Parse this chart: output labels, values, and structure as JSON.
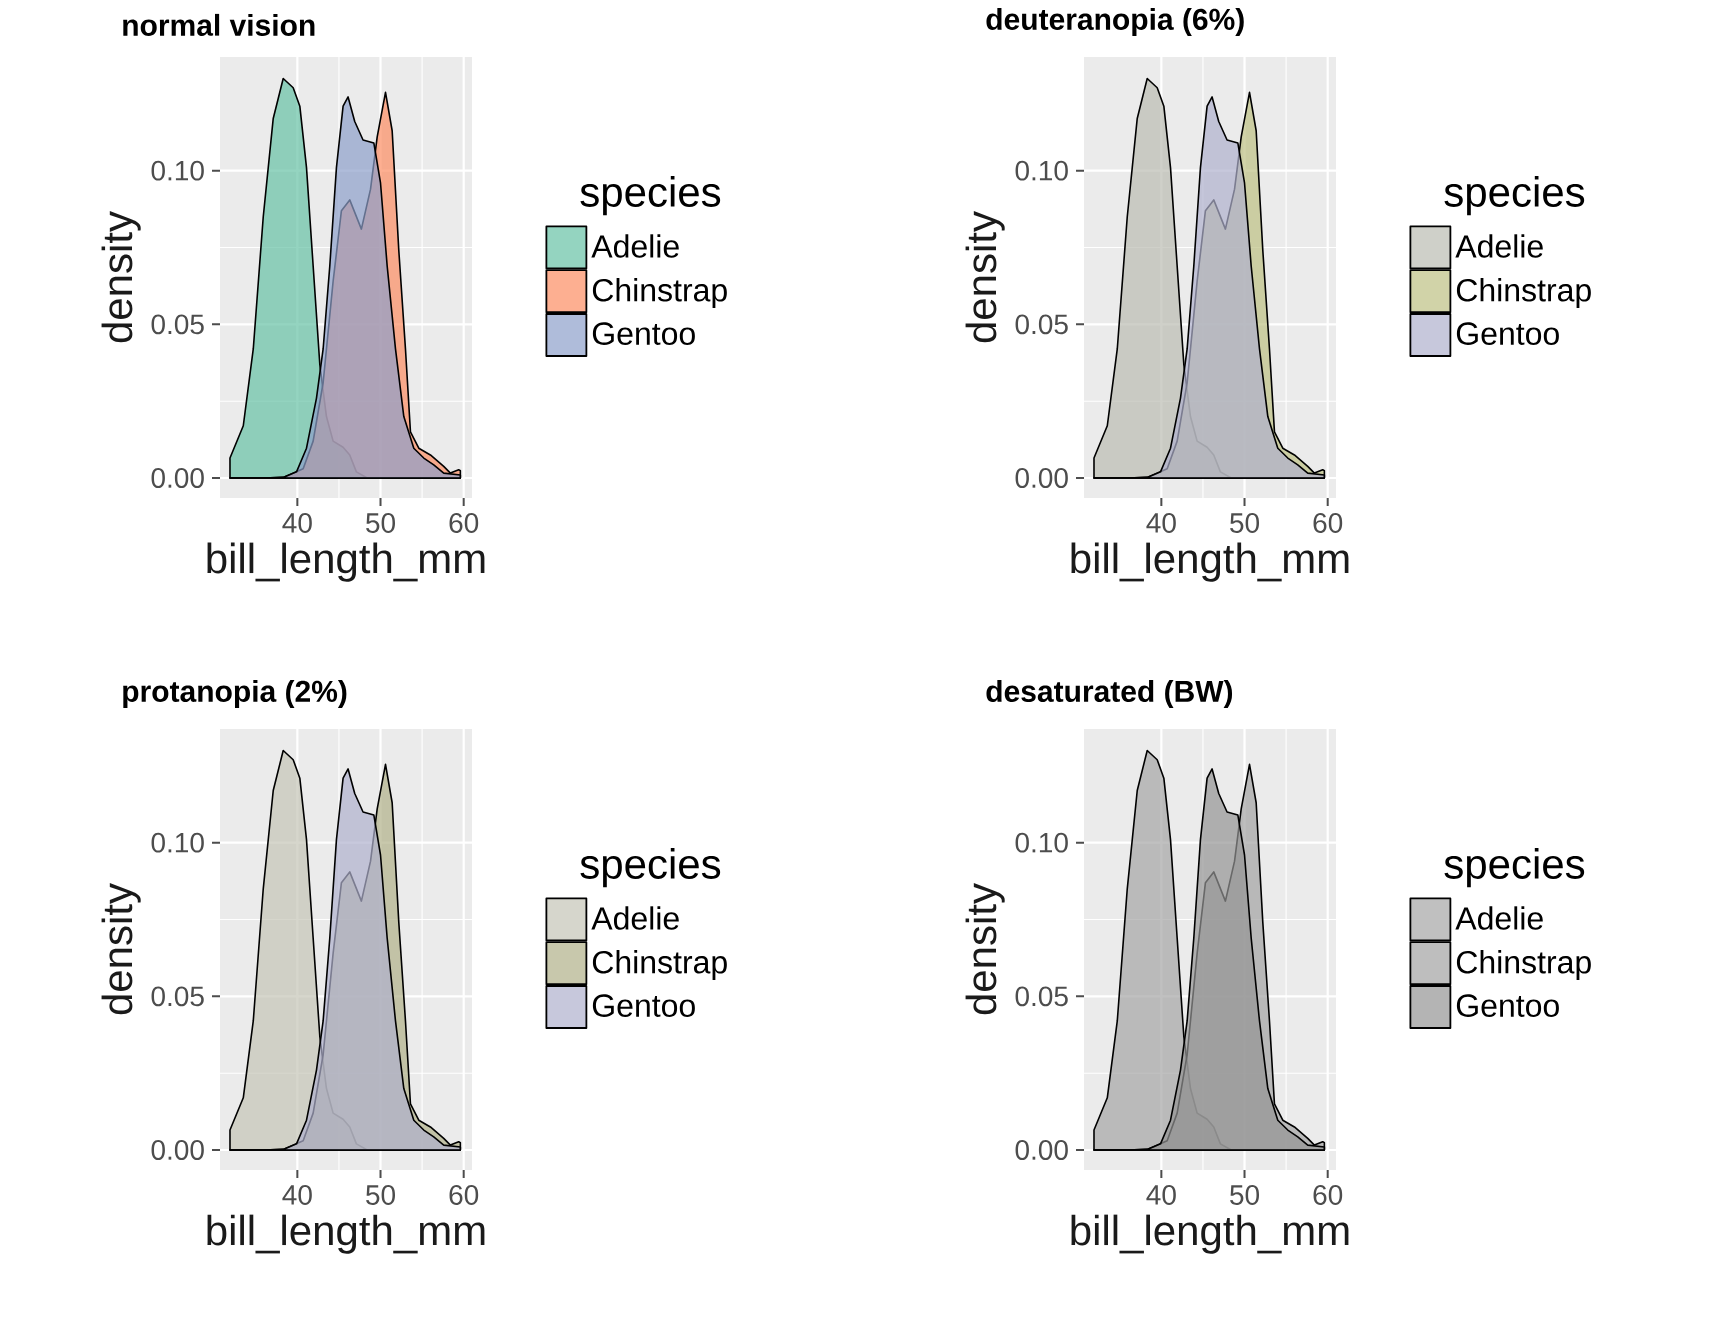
{
  "chart_data": [
    {
      "type": "area",
      "title": "normal vision",
      "xlabel": "bill_length_mm",
      "ylabel": "density",
      "legend_title": "species",
      "legend": "right",
      "grid": true,
      "xlim": [
        30.7,
        61.0
      ],
      "ylim": [
        -0.0065,
        0.137
      ],
      "xticks": [
        40,
        50,
        60
      ],
      "yticks": [
        {
          "value": 0,
          "label": "0.00"
        },
        {
          "value": 0.05,
          "label": "0.05"
        },
        {
          "value": 0.1,
          "label": "0.10"
        }
      ],
      "series": [
        {
          "name": "Adelie",
          "color": "#66c2a5",
          "x": [
            31.9,
            33.5,
            34.7,
            35.9,
            37.1,
            38.3,
            39.5,
            40.3,
            41.1,
            41.9,
            42.7,
            43.5,
            44.3,
            45.5,
            46.3,
            47.1,
            48.4,
            52,
            56,
            59.6
          ],
          "values": [
            0.0065,
            0.017,
            0.042,
            0.085,
            0.117,
            0.13,
            0.127,
            0.121,
            0.101,
            0.069,
            0.037,
            0.02,
            0.012,
            0.01,
            0.0075,
            0.002,
            0,
            0,
            0,
            0
          ]
        },
        {
          "name": "Chinstrap",
          "color": "#fc8d62",
          "x": [
            31.9,
            36,
            38.3,
            40.7,
            41.9,
            43.1,
            44.3,
            45.3,
            46.3,
            47.7,
            48.8,
            49.6,
            50.6,
            51.4,
            52.2,
            53.0,
            53.6,
            54.6,
            56.0,
            57.6,
            58.4,
            59.4,
            59.6
          ],
          "values": [
            0,
            0,
            0.0002,
            0.003,
            0.012,
            0.031,
            0.064,
            0.087,
            0.0905,
            0.081,
            0.094,
            0.111,
            0.1255,
            0.113,
            0.074,
            0.042,
            0.015,
            0.0097,
            0.0075,
            0.0038,
            0.0016,
            0.0027,
            0.0024
          ]
        },
        {
          "name": "Gentoo",
          "color": "#8da0cb",
          "x": [
            31.9,
            36,
            38.3,
            39.9,
            41.1,
            42.3,
            43.1,
            43.9,
            44.7,
            45.5,
            46.1,
            46.9,
            47.9,
            49.2,
            50.0,
            50.8,
            51.8,
            52.8,
            54.0,
            55.2,
            56.4,
            57.6,
            59.6
          ],
          "values": [
            0,
            0,
            0.0002,
            0.002,
            0.0097,
            0.026,
            0.042,
            0.069,
            0.101,
            0.121,
            0.124,
            0.116,
            0.11,
            0.109,
            0.096,
            0.069,
            0.042,
            0.02,
            0.0097,
            0.0065,
            0.0043,
            0.0016,
            0.001
          ]
        }
      ]
    },
    {
      "type": "area",
      "title": "deuteranopia (6%)",
      "xlabel": "bill_length_mm",
      "ylabel": "density",
      "legend_title": "species",
      "legend": "right",
      "grid": true,
      "xlim": [
        30.7,
        61.0
      ],
      "ylim": [
        -0.0065,
        0.137
      ],
      "xticks": [
        40,
        50,
        60
      ],
      "yticks": [
        {
          "value": 0,
          "label": "0.00"
        },
        {
          "value": 0.05,
          "label": "0.05"
        },
        {
          "value": 0.1,
          "label": "0.10"
        }
      ],
      "series": [
        {
          "name": "Adelie",
          "color": "#babcb2",
          "x": [
            31.9,
            33.5,
            34.7,
            35.9,
            37.1,
            38.3,
            39.5,
            40.3,
            41.1,
            41.9,
            42.7,
            43.5,
            44.3,
            45.5,
            46.3,
            47.1,
            48.4,
            52,
            56,
            59.6
          ],
          "values": [
            0.0065,
            0.017,
            0.042,
            0.085,
            0.117,
            0.13,
            0.127,
            0.121,
            0.101,
            0.069,
            0.037,
            0.02,
            0.012,
            0.01,
            0.0075,
            0.002,
            0,
            0,
            0,
            0
          ]
        },
        {
          "name": "Chinstrap",
          "color": "#bdc083",
          "x": [
            31.9,
            36,
            38.3,
            40.7,
            41.9,
            43.1,
            44.3,
            45.3,
            46.3,
            47.7,
            48.8,
            49.6,
            50.6,
            51.4,
            52.2,
            53.0,
            53.6,
            54.6,
            56.0,
            57.6,
            58.4,
            59.4,
            59.6
          ],
          "values": [
            0,
            0,
            0.0002,
            0.003,
            0.012,
            0.031,
            0.064,
            0.087,
            0.0905,
            0.081,
            0.094,
            0.111,
            0.1255,
            0.113,
            0.074,
            0.042,
            0.015,
            0.0097,
            0.0075,
            0.0038,
            0.0016,
            0.0027,
            0.0024
          ]
        },
        {
          "name": "Gentoo",
          "color": "#afb0cd",
          "x": [
            31.9,
            36,
            38.3,
            39.9,
            41.1,
            42.3,
            43.1,
            43.9,
            44.7,
            45.5,
            46.1,
            46.9,
            47.9,
            49.2,
            50.0,
            50.8,
            51.8,
            52.8,
            54.0,
            55.2,
            56.4,
            57.6,
            59.6
          ],
          "values": [
            0,
            0,
            0.0002,
            0.002,
            0.0097,
            0.026,
            0.042,
            0.069,
            0.101,
            0.121,
            0.124,
            0.116,
            0.11,
            0.109,
            0.096,
            0.069,
            0.042,
            0.02,
            0.0097,
            0.0065,
            0.0043,
            0.0016,
            0.001
          ]
        }
      ]
    },
    {
      "type": "area",
      "title": "protanopia (2%)",
      "xlabel": "bill_length_mm",
      "ylabel": "density",
      "legend_title": "species",
      "legend": "right",
      "grid": true,
      "xlim": [
        30.7,
        61.0
      ],
      "ylim": [
        -0.0065,
        0.137
      ],
      "xticks": [
        40,
        50,
        60
      ],
      "yticks": [
        {
          "value": 0,
          "label": "0.00"
        },
        {
          "value": 0.05,
          "label": "0.05"
        },
        {
          "value": 0.1,
          "label": "0.10"
        }
      ],
      "series": [
        {
          "name": "Adelie",
          "color": "#c4c4b7",
          "x": [
            31.9,
            33.5,
            34.7,
            35.9,
            37.1,
            38.3,
            39.5,
            40.3,
            41.1,
            41.9,
            42.7,
            43.5,
            44.3,
            45.5,
            46.3,
            47.1,
            48.4,
            52,
            56,
            59.6
          ],
          "values": [
            0.0065,
            0.017,
            0.042,
            0.085,
            0.117,
            0.13,
            0.127,
            0.121,
            0.101,
            0.069,
            0.037,
            0.02,
            0.012,
            0.01,
            0.0075,
            0.002,
            0,
            0,
            0,
            0
          ]
        },
        {
          "name": "Chinstrap",
          "color": "#b1b189",
          "x": [
            31.9,
            36,
            38.3,
            40.7,
            41.9,
            43.1,
            44.3,
            45.3,
            46.3,
            47.7,
            48.8,
            49.6,
            50.6,
            51.4,
            52.2,
            53.0,
            53.6,
            54.6,
            56.0,
            57.6,
            58.4,
            59.4,
            59.6
          ],
          "values": [
            0,
            0,
            0.0002,
            0.003,
            0.012,
            0.031,
            0.064,
            0.087,
            0.0905,
            0.081,
            0.094,
            0.111,
            0.1255,
            0.113,
            0.074,
            0.042,
            0.015,
            0.0097,
            0.0075,
            0.0038,
            0.0016,
            0.0027,
            0.0024
          ]
        },
        {
          "name": "Gentoo",
          "color": "#afb0cd",
          "x": [
            31.9,
            36,
            38.3,
            39.9,
            41.1,
            42.3,
            43.1,
            43.9,
            44.7,
            45.5,
            46.1,
            46.9,
            47.9,
            49.2,
            50.0,
            50.8,
            51.8,
            52.8,
            54.0,
            55.2,
            56.4,
            57.6,
            59.6
          ],
          "values": [
            0,
            0,
            0.0002,
            0.002,
            0.0097,
            0.026,
            0.042,
            0.069,
            0.101,
            0.121,
            0.124,
            0.116,
            0.11,
            0.109,
            0.096,
            0.069,
            0.042,
            0.02,
            0.0097,
            0.0065,
            0.0043,
            0.0016,
            0.001
          ]
        }
      ]
    },
    {
      "type": "area",
      "title": "desaturated (BW)",
      "xlabel": "bill_length_mm",
      "ylabel": "density",
      "legend_title": "species",
      "legend": "right",
      "grid": true,
      "xlim": [
        30.7,
        61.0
      ],
      "ylim": [
        -0.0065,
        0.137
      ],
      "xticks": [
        40,
        50,
        60
      ],
      "yticks": [
        {
          "value": 0,
          "label": "0.00"
        },
        {
          "value": 0.05,
          "label": "0.05"
        },
        {
          "value": 0.1,
          "label": "0.10"
        }
      ],
      "series": [
        {
          "name": "Adelie",
          "color": "#a5a5a5",
          "x": [
            31.9,
            33.5,
            34.7,
            35.9,
            37.1,
            38.3,
            39.5,
            40.3,
            41.1,
            41.9,
            42.7,
            43.5,
            44.3,
            45.5,
            46.3,
            47.1,
            48.4,
            52,
            56,
            59.6
          ],
          "values": [
            0.0065,
            0.017,
            0.042,
            0.085,
            0.117,
            0.13,
            0.127,
            0.121,
            0.101,
            0.069,
            0.037,
            0.02,
            0.012,
            0.01,
            0.0075,
            0.002,
            0,
            0,
            0,
            0
          ]
        },
        {
          "name": "Chinstrap",
          "color": "#a2a2a2",
          "x": [
            31.9,
            36,
            38.3,
            40.7,
            41.9,
            43.1,
            44.3,
            45.3,
            46.3,
            47.7,
            48.8,
            49.6,
            50.6,
            51.4,
            52.2,
            53.0,
            53.6,
            54.6,
            56.0,
            57.6,
            58.4,
            59.4,
            59.6
          ],
          "values": [
            0,
            0,
            0.0002,
            0.003,
            0.012,
            0.031,
            0.064,
            0.087,
            0.0905,
            0.081,
            0.094,
            0.111,
            0.1255,
            0.113,
            0.074,
            0.042,
            0.015,
            0.0097,
            0.0075,
            0.0038,
            0.0016,
            0.0027,
            0.0024
          ]
        },
        {
          "name": "Gentoo",
          "color": "#949494",
          "x": [
            31.9,
            36,
            38.3,
            39.9,
            41.1,
            42.3,
            43.1,
            43.9,
            44.7,
            45.5,
            46.1,
            46.9,
            47.9,
            49.2,
            50.0,
            50.8,
            51.8,
            52.8,
            54.0,
            55.2,
            56.4,
            57.6,
            59.6
          ],
          "values": [
            0,
            0,
            0.0002,
            0.002,
            0.0097,
            0.026,
            0.042,
            0.069,
            0.101,
            0.121,
            0.124,
            0.116,
            0.11,
            0.109,
            0.096,
            0.069,
            0.042,
            0.02,
            0.0097,
            0.0065,
            0.0043,
            0.0016,
            0.001
          ]
        }
      ]
    }
  ]
}
